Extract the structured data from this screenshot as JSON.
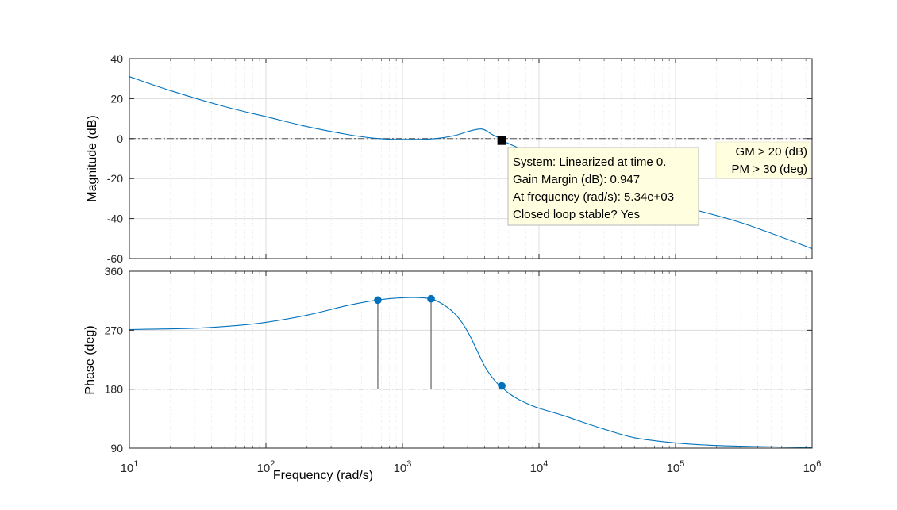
{
  "figure": {
    "xlabel": "Frequency  (rad/s)",
    "requirements": [
      "GM > 20 (dB)",
      "PM > 30 (deg)"
    ]
  },
  "datatip": {
    "lines": [
      "System: Linearized at time 0.",
      "Gain Margin (dB): 0.947",
      "At frequency (rad/s): 5.34e+03",
      "Closed loop stable? Yes"
    ]
  },
  "colors": {
    "line": "#0072BD",
    "grid": "#DCDCDC",
    "axes": "#262626",
    "requirement_fill": "#FFFFE0"
  },
  "chart_data": [
    {
      "type": "line",
      "title": "",
      "xlabel": "",
      "ylabel": "Magnitude (dB)",
      "xscale": "log",
      "xlim": [
        10,
        1000000
      ],
      "ylim": [
        -60,
        40
      ],
      "xticks": [
        10,
        100,
        1000,
        10000,
        100000,
        1000000
      ],
      "xtick_labels": [],
      "yticks": [
        -60,
        -40,
        -20,
        0,
        20,
        40
      ],
      "ytick_labels": [
        "-60",
        "-40",
        "-20",
        "0",
        "20",
        "40"
      ],
      "grid": true,
      "reference_line": 0,
      "series": [
        {
          "x": [
            10,
            20,
            50,
            100,
            200,
            400,
            600,
            800,
            1000,
            1500,
            2000,
            2500,
            3000,
            3500,
            3800,
            4100,
            4500,
            5000,
            5340,
            6000,
            7000,
            10000,
            20000,
            50000,
            100000,
            300000,
            1000000
          ],
          "y": [
            31,
            24,
            16,
            11,
            6,
            2,
            0.3,
            -0.3,
            -0.4,
            -0.3,
            0.5,
            1.8,
            3.5,
            4.6,
            4.8,
            4.0,
            2.2,
            0.6,
            -0.9,
            -2.5,
            -4.5,
            -9,
            -17,
            -27,
            -33,
            -42,
            -55
          ]
        }
      ],
      "markers": [
        {
          "x": 5340,
          "y": -0.947,
          "style": "square"
        }
      ]
    },
    {
      "type": "line",
      "title": "",
      "xlabel": "",
      "ylabel": "Phase (deg)",
      "xscale": "log",
      "xlim": [
        10,
        1000000
      ],
      "ylim": [
        90,
        360
      ],
      "xticks": [
        10,
        100,
        1000,
        10000,
        100000,
        1000000
      ],
      "xtick_labels": [
        "10^1",
        "10^2",
        "10^3",
        "10^4",
        "10^5",
        "10^6"
      ],
      "yticks": [
        90,
        180,
        270,
        360
      ],
      "ytick_labels": [
        "90",
        "180",
        "270",
        "360"
      ],
      "grid": true,
      "reference_line": 180,
      "series": [
        {
          "x": [
            10,
            30,
            60,
            100,
            200,
            400,
            650,
            900,
            1200,
            1600,
            2000,
            2500,
            3000,
            3500,
            4000,
            4500,
            5000,
            5340,
            6000,
            7000,
            8000,
            10000,
            15000,
            20000,
            30000,
            50000,
            100000,
            200000,
            500000,
            1000000
          ],
          "y": [
            271,
            273,
            277,
            282,
            293,
            308,
            316,
            319,
            320,
            318,
            309,
            292,
            268,
            240,
            215,
            199,
            188,
            183,
            174,
            165,
            159,
            151,
            140,
            131,
            119,
            106,
            98,
            94,
            92,
            91
          ]
        }
      ],
      "markers": [
        {
          "x": 660,
          "y": 316,
          "style": "circle",
          "stem_to": 180
        },
        {
          "x": 1620,
          "y": 318,
          "style": "circle",
          "stem_to": 180
        },
        {
          "x": 5340,
          "y": 185,
          "style": "circle"
        }
      ]
    }
  ]
}
